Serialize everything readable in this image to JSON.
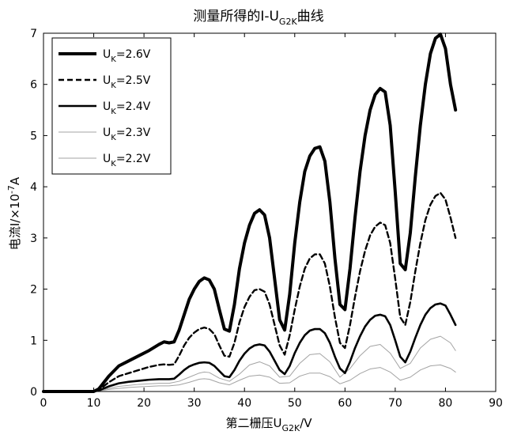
{
  "chart_data": {
    "type": "line",
    "title": {
      "main": "测量所得的I-U",
      "sub": "G2K",
      "suffix": "曲线"
    },
    "xlabel": {
      "main": "第二栅压U",
      "sub": "G2K",
      "suffix": "/V"
    },
    "ylabel": {
      "main": "电流I/×10",
      "sup": "-7",
      "suffix": "A"
    },
    "xlim": [
      0,
      90
    ],
    "ylim": [
      0,
      7
    ],
    "xticks": [
      0,
      10,
      20,
      30,
      40,
      50,
      60,
      70,
      80,
      90
    ],
    "yticks": [
      0,
      1,
      2,
      3,
      4,
      5,
      6,
      7
    ],
    "grid": false,
    "legend_position": "top-left",
    "series": [
      {
        "name": {
          "main": "U",
          "sub": "K",
          "suffix": "=2.6V"
        },
        "style": "solid-thick",
        "x": [
          0,
          10,
          11,
          13,
          15,
          17,
          19,
          21,
          23,
          24,
          25,
          26,
          27,
          28,
          29,
          30,
          31,
          32,
          33,
          34,
          35,
          36,
          37,
          38,
          39,
          40,
          41,
          42,
          43,
          44,
          45,
          46,
          47,
          48,
          49,
          50,
          51,
          52,
          53,
          54,
          55,
          56,
          57,
          58,
          59,
          60,
          61,
          62,
          63,
          64,
          65,
          66,
          67,
          68,
          69,
          70,
          71,
          72,
          73,
          74,
          75,
          76,
          77,
          78,
          79,
          80,
          81,
          82
        ],
        "y": [
          0,
          0,
          0.05,
          0.3,
          0.5,
          0.6,
          0.7,
          0.8,
          0.92,
          0.97,
          0.95,
          0.97,
          1.2,
          1.5,
          1.8,
          2.0,
          2.15,
          2.22,
          2.18,
          2.0,
          1.6,
          1.22,
          1.18,
          1.7,
          2.4,
          2.9,
          3.25,
          3.48,
          3.55,
          3.45,
          3.0,
          2.2,
          1.4,
          1.2,
          1.9,
          2.9,
          3.7,
          4.3,
          4.6,
          4.75,
          4.78,
          4.5,
          3.7,
          2.6,
          1.7,
          1.6,
          2.4,
          3.4,
          4.3,
          5.0,
          5.5,
          5.8,
          5.92,
          5.85,
          5.2,
          3.9,
          2.5,
          2.38,
          3.1,
          4.2,
          5.2,
          6.0,
          6.6,
          6.9,
          6.98,
          6.7,
          6.0,
          5.5
        ]
      },
      {
        "name": {
          "main": "U",
          "sub": "K",
          "suffix": "=2.5V"
        },
        "style": "dashed",
        "x": [
          0,
          10,
          11,
          13,
          15,
          17,
          19,
          21,
          23,
          24,
          25,
          26,
          27,
          28,
          29,
          30,
          31,
          32,
          33,
          34,
          35,
          36,
          37,
          38,
          39,
          40,
          41,
          42,
          43,
          44,
          45,
          46,
          47,
          48,
          49,
          50,
          51,
          52,
          53,
          54,
          55,
          56,
          57,
          58,
          59,
          60,
          61,
          62,
          63,
          64,
          65,
          66,
          67,
          68,
          69,
          70,
          71,
          72,
          73,
          74,
          75,
          76,
          77,
          78,
          79,
          80,
          81,
          82
        ],
        "y": [
          0,
          0,
          0.03,
          0.18,
          0.3,
          0.36,
          0.42,
          0.48,
          0.52,
          0.53,
          0.52,
          0.53,
          0.7,
          0.9,
          1.05,
          1.15,
          1.22,
          1.25,
          1.22,
          1.12,
          0.9,
          0.7,
          0.68,
          0.95,
          1.35,
          1.65,
          1.85,
          1.98,
          2.0,
          1.95,
          1.7,
          1.3,
          0.9,
          0.72,
          1.1,
          1.6,
          2.05,
          2.4,
          2.6,
          2.68,
          2.68,
          2.5,
          2.05,
          1.45,
          0.95,
          0.85,
          1.3,
          1.85,
          2.35,
          2.75,
          3.05,
          3.22,
          3.3,
          3.25,
          2.9,
          2.2,
          1.45,
          1.3,
          1.75,
          2.35,
          2.9,
          3.35,
          3.65,
          3.82,
          3.88,
          3.75,
          3.4,
          3.0
        ]
      },
      {
        "name": {
          "main": "U",
          "sub": "K",
          "suffix": "=2.4V"
        },
        "style": "solid",
        "x": [
          0,
          10,
          11,
          13,
          15,
          17,
          19,
          21,
          23,
          24,
          25,
          26,
          27,
          28,
          29,
          30,
          31,
          32,
          33,
          34,
          35,
          36,
          37,
          38,
          39,
          40,
          41,
          42,
          43,
          44,
          45,
          46,
          47,
          48,
          49,
          50,
          51,
          52,
          53,
          54,
          55,
          56,
          57,
          58,
          59,
          60,
          61,
          62,
          63,
          64,
          65,
          66,
          67,
          68,
          69,
          70,
          71,
          72,
          73,
          74,
          75,
          76,
          77,
          78,
          79,
          80,
          81,
          82
        ],
        "y": [
          0,
          0,
          0.02,
          0.1,
          0.16,
          0.19,
          0.21,
          0.23,
          0.24,
          0.24,
          0.24,
          0.25,
          0.33,
          0.42,
          0.49,
          0.53,
          0.56,
          0.57,
          0.56,
          0.5,
          0.4,
          0.3,
          0.28,
          0.42,
          0.6,
          0.74,
          0.84,
          0.9,
          0.92,
          0.9,
          0.78,
          0.6,
          0.42,
          0.34,
          0.5,
          0.75,
          0.95,
          1.1,
          1.19,
          1.22,
          1.22,
          1.14,
          0.95,
          0.68,
          0.45,
          0.36,
          0.58,
          0.85,
          1.08,
          1.27,
          1.4,
          1.48,
          1.5,
          1.47,
          1.3,
          1.0,
          0.68,
          0.57,
          0.78,
          1.05,
          1.3,
          1.5,
          1.63,
          1.7,
          1.72,
          1.68,
          1.5,
          1.3
        ]
      },
      {
        "name": {
          "main": "U",
          "sub": "K",
          "suffix": "=2.3V"
        },
        "style": "thin-gray",
        "x": [
          0,
          10,
          11,
          13,
          15,
          17,
          19,
          21,
          23,
          25,
          27,
          29,
          31,
          32,
          33,
          35,
          37,
          39,
          41,
          43,
          45,
          47,
          49,
          51,
          53,
          55,
          57,
          59,
          61,
          63,
          65,
          67,
          69,
          71,
          73,
          75,
          77,
          79,
          81,
          82
        ],
        "y": [
          0,
          0,
          0.02,
          0.06,
          0.1,
          0.12,
          0.14,
          0.15,
          0.16,
          0.16,
          0.2,
          0.28,
          0.36,
          0.38,
          0.37,
          0.26,
          0.2,
          0.34,
          0.52,
          0.58,
          0.5,
          0.28,
          0.3,
          0.55,
          0.72,
          0.74,
          0.58,
          0.28,
          0.45,
          0.7,
          0.88,
          0.92,
          0.75,
          0.45,
          0.55,
          0.85,
          1.02,
          1.08,
          0.95,
          0.8
        ]
      },
      {
        "name": {
          "main": "U",
          "sub": "K",
          "suffix": "=2.2V"
        },
        "style": "thin-gray",
        "x": [
          0,
          10,
          11,
          13,
          15,
          17,
          19,
          21,
          23,
          25,
          27,
          29,
          31,
          32,
          33,
          35,
          37,
          39,
          41,
          43,
          45,
          47,
          49,
          51,
          53,
          55,
          57,
          59,
          61,
          63,
          65,
          67,
          69,
          71,
          73,
          75,
          77,
          79,
          81,
          82
        ],
        "y": [
          0,
          0,
          0.01,
          0.04,
          0.06,
          0.08,
          0.09,
          0.1,
          0.11,
          0.11,
          0.13,
          0.18,
          0.24,
          0.25,
          0.24,
          0.17,
          0.13,
          0.22,
          0.3,
          0.32,
          0.28,
          0.16,
          0.17,
          0.3,
          0.36,
          0.36,
          0.29,
          0.15,
          0.22,
          0.35,
          0.44,
          0.47,
          0.38,
          0.22,
          0.28,
          0.42,
          0.5,
          0.52,
          0.45,
          0.38
        ]
      }
    ]
  }
}
